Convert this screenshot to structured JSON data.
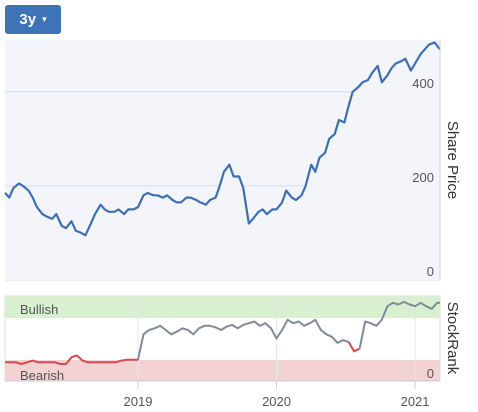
{
  "controls": {
    "range_label": "3y",
    "range_caret": "▾"
  },
  "chart_data": [
    {
      "type": "line",
      "title": "",
      "ylabel": "Share Price",
      "ylim": [
        0,
        510
      ],
      "yticks": [
        0,
        200,
        400
      ],
      "xlim": [
        2018.04,
        2021.18
      ],
      "grid": true,
      "line_color": "#3d6fb5",
      "fill_color": "#f3f5fb",
      "x": [
        2018.04,
        2018.07,
        2018.1,
        2018.14,
        2018.17,
        2018.21,
        2018.24,
        2018.27,
        2018.31,
        2018.34,
        2018.38,
        2018.41,
        2018.45,
        2018.48,
        2018.52,
        2018.55,
        2018.59,
        2018.62,
        2018.66,
        2018.69,
        2018.73,
        2018.76,
        2018.79,
        2018.83,
        2018.86,
        2018.9,
        2018.93,
        2018.97,
        2019.0,
        2019.04,
        2019.07,
        2019.11,
        2019.14,
        2019.18,
        2019.21,
        2019.25,
        2019.28,
        2019.31,
        2019.35,
        2019.38,
        2019.42,
        2019.45,
        2019.49,
        2019.52,
        2019.56,
        2019.59,
        2019.62,
        2019.66,
        2019.69,
        2019.73,
        2019.76,
        2019.8,
        2019.83,
        2019.87,
        2019.9,
        2019.93,
        2019.97,
        2020.0,
        2020.04,
        2020.07,
        2020.11,
        2020.14,
        2020.18,
        2020.21,
        2020.25,
        2020.28,
        2020.31,
        2020.35,
        2020.38,
        2020.42,
        2020.45,
        2020.49,
        2020.52,
        2020.55,
        2020.59,
        2020.62,
        2020.66,
        2020.69,
        2020.73,
        2020.76,
        2020.8,
        2020.83,
        2020.86,
        2020.9,
        2020.93,
        2020.97,
        2021.0,
        2021.04,
        2021.07,
        2021.1,
        2021.14,
        2021.18
      ],
      "y": [
        185,
        175,
        195,
        205,
        200,
        190,
        175,
        155,
        140,
        135,
        130,
        140,
        115,
        110,
        125,
        105,
        100,
        95,
        120,
        140,
        160,
        150,
        145,
        145,
        150,
        140,
        150,
        150,
        155,
        180,
        185,
        180,
        180,
        175,
        180,
        170,
        165,
        165,
        175,
        175,
        170,
        165,
        160,
        170,
        175,
        200,
        230,
        245,
        220,
        220,
        195,
        120,
        130,
        145,
        150,
        140,
        150,
        150,
        165,
        190,
        175,
        170,
        180,
        200,
        245,
        230,
        260,
        270,
        300,
        310,
        340,
        335,
        370,
        400,
        410,
        420,
        425,
        440,
        455,
        420,
        435,
        450,
        460,
        465,
        470,
        445,
        460,
        480,
        490,
        500,
        505,
        490
      ],
      "bands": [
        {
          "label": "Bullish",
          "color": "#d8f0cf",
          "label_color": "#2e7d32"
        },
        {
          "label": "Bearish",
          "color": "#f2d2d2",
          "label_color": "#c62828"
        }
      ],
      "xticks": [
        "2019",
        "2020",
        "2021"
      ]
    },
    {
      "type": "line",
      "title": "",
      "ylabel": "StockRank",
      "ylim": [
        0,
        100
      ],
      "yticks": [
        0
      ],
      "xlim": [
        2018.04,
        2021.18
      ],
      "series": [
        {
          "segments": [
            {
              "color": "#d9474f",
              "x": [
                2018.04,
                2018.08,
                2018.12,
                2018.16,
                2018.2,
                2018.24,
                2018.28,
                2018.32,
                2018.36,
                2018.4,
                2018.44,
                2018.48,
                2018.52,
                2018.56,
                2018.6,
                2018.64,
                2018.68,
                2018.72,
                2018.76,
                2018.8,
                2018.84,
                2018.88,
                2018.92,
                2018.96,
                2019.0
              ],
              "y": [
                22,
                22,
                22,
                20,
                22,
                24,
                22,
                22,
                22,
                22,
                20,
                20,
                28,
                30,
                24,
                22,
                22,
                22,
                22,
                22,
                22,
                24,
                25,
                25,
                25
              ]
            },
            {
              "color": "#7f8b99",
              "x": [
                2019.0,
                2019.04,
                2019.08,
                2019.12,
                2019.16,
                2019.2,
                2019.24,
                2019.28,
                2019.32,
                2019.36,
                2019.4,
                2019.44,
                2019.48,
                2019.52,
                2019.56,
                2019.6,
                2019.64,
                2019.68,
                2019.72,
                2019.76,
                2019.8,
                2019.84,
                2019.88,
                2019.92,
                2019.96,
                2020.0,
                2020.04,
                2020.08,
                2020.12,
                2020.16,
                2020.2,
                2020.24,
                2020.28,
                2020.32,
                2020.36,
                2020.4,
                2020.44,
                2020.48,
                2020.52
              ],
              "y": [
                25,
                55,
                60,
                62,
                65,
                60,
                55,
                58,
                62,
                60,
                55,
                62,
                65,
                65,
                63,
                60,
                64,
                66,
                62,
                66,
                68,
                70,
                65,
                68,
                62,
                50,
                60,
                72,
                68,
                70,
                65,
                68,
                72,
                60,
                55,
                52,
                45,
                48,
                46
              ]
            },
            {
              "color": "#d9474f",
              "x": [
                2020.52,
                2020.56,
                2020.6
              ],
              "y": [
                46,
                35,
                38
              ]
            },
            {
              "color": "#7f8b99",
              "x": [
                2020.6,
                2020.64,
                2020.68,
                2020.72,
                2020.76,
                2020.8,
                2020.84,
                2020.88,
                2020.92,
                2020.96,
                2021.0,
                2021.04,
                2021.08,
                2021.12,
                2021.16,
                2021.18
              ],
              "y": [
                38,
                70,
                68,
                65,
                72,
                88,
                92,
                90,
                93,
                90,
                88,
                92,
                88,
                85,
                92,
                92
              ]
            }
          ]
        }
      ],
      "bands": [
        {
          "label": "Bullish",
          "color": "#d8f0cf",
          "label_color": "#2e7d32"
        },
        {
          "label": "Bearish",
          "color": "#f2d2d2",
          "label_color": "#c62828"
        }
      ]
    }
  ]
}
